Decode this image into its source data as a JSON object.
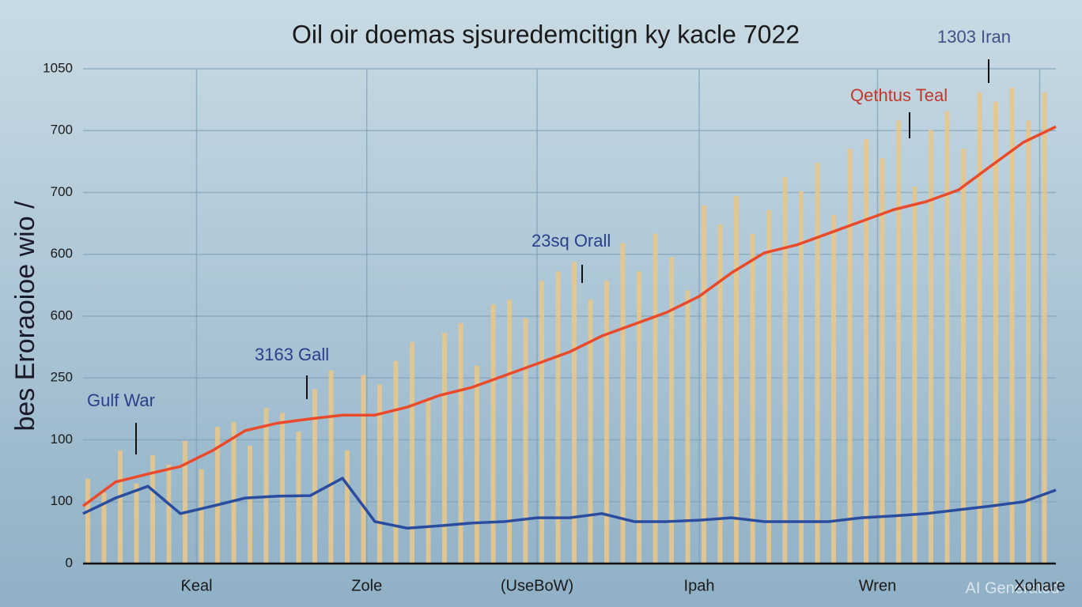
{
  "chart_data": {
    "type": "bar-line",
    "title": "Oil oir doemas sjsuredemcitign ky kacle 7022",
    "ylabel": "bes Eroraoioe wio /",
    "watermark": "AI Generated",
    "xlim": [
      0,
      60
    ],
    "xticks": [
      {
        "value": 7,
        "label": "Ƙeal"
      },
      {
        "value": 17.5,
        "label": "Zole"
      },
      {
        "value": 28,
        "label": "(UseBoW)"
      },
      {
        "value": 38,
        "label": "Ipah"
      },
      {
        "value": 49,
        "label": "Wren"
      },
      {
        "value": 59,
        "label": "Xohare"
      }
    ],
    "ylim": [
      0,
      1050
    ],
    "yticks": [
      0,
      {
        "value": 131.25,
        "label": "100"
      },
      {
        "value": 262.5,
        "label": "100"
      },
      {
        "value": 393.75,
        "label": "250"
      },
      {
        "value": 525,
        "label": "600"
      },
      {
        "value": 656.25,
        "label": "600"
      },
      {
        "value": 787.5,
        "label": "700"
      },
      {
        "value": 918.75,
        "label": "700"
      },
      1050
    ],
    "grid": true,
    "series": [
      {
        "kind": "bar",
        "color": "#e6c78c",
        "x": [
          0,
          1,
          2,
          3,
          4,
          5,
          6,
          7,
          8,
          9,
          10,
          11,
          12,
          13,
          14,
          15,
          16,
          17,
          18,
          19,
          20,
          21,
          22,
          23,
          24,
          25,
          26,
          27,
          28,
          29,
          30,
          31,
          32,
          33,
          34,
          35,
          36,
          37,
          38,
          39,
          40,
          41,
          42,
          43,
          44,
          45,
          46,
          47,
          48,
          49,
          50,
          51,
          52,
          53,
          54,
          55,
          56,
          57,
          58,
          59
        ],
        "values": [
          180,
          150,
          240,
          170,
          230,
          210,
          260,
          200,
          290,
          300,
          250,
          330,
          320,
          280,
          370,
          410,
          240,
          400,
          380,
          430,
          470,
          350,
          490,
          510,
          420,
          550,
          560,
          520,
          600,
          620,
          640,
          560,
          600,
          680,
          620,
          700,
          650,
          580,
          760,
          720,
          780,
          700,
          750,
          820,
          790,
          850,
          740,
          880,
          900,
          860,
          940,
          800,
          920,
          960,
          880,
          1000,
          980,
          1010,
          940,
          1000
        ]
      },
      {
        "kind": "line",
        "color": "#ea4a2a",
        "x": [
          0,
          2,
          4,
          6,
          8,
          10,
          12,
          14,
          16,
          18,
          20,
          22,
          24,
          26,
          28,
          30,
          32,
          34,
          36,
          38,
          40,
          42,
          44,
          46,
          48,
          50,
          52,
          54,
          56,
          58,
          60
        ],
        "values": [
          122,
          173,
          190,
          206,
          240,
          282,
          298,
          307,
          315,
          315,
          332,
          357,
          374,
          399,
          424,
          449,
          483,
          508,
          533,
          567,
          617,
          659,
          676,
          701,
          726,
          751,
          768,
          793,
          844,
          894,
          927
        ]
      },
      {
        "kind": "line",
        "color": "#2a4c9e",
        "x": [
          0,
          2,
          4,
          6,
          8,
          10,
          12,
          14,
          16,
          18,
          20,
          22,
          24,
          26,
          28,
          30,
          32,
          34,
          36,
          38,
          40,
          42,
          44,
          46,
          48,
          50,
          52,
          54,
          56,
          58,
          60
        ],
        "values": [
          106,
          139,
          164,
          106,
          122,
          139,
          143,
          144,
          181,
          89,
          75,
          80,
          86,
          89,
          97,
          97,
          106,
          89,
          89,
          92,
          97,
          89,
          89,
          89,
          97,
          101,
          106,
          114,
          122,
          131,
          156
        ]
      }
    ],
    "annotations": [
      "Gulf War",
      "3163 Gall",
      "23sq Orall",
      "Qethtus Teal",
      "1303 Iran"
    ]
  }
}
